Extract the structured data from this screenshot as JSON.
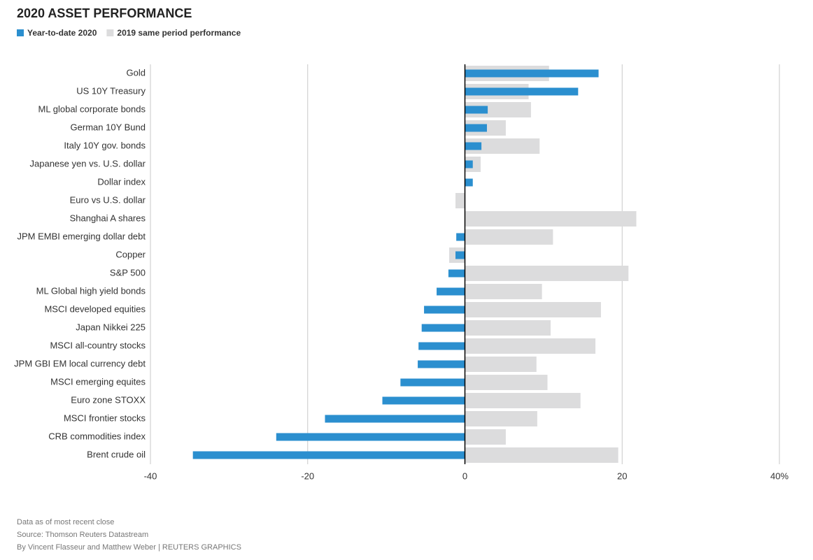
{
  "chart_data": {
    "type": "bar",
    "orientation": "horizontal",
    "title": "2020 ASSET PERFORMANCE",
    "categories": [
      "Gold",
      "US 10Y Treasury",
      "ML global corporate bonds",
      "German 10Y Bund",
      "Italy 10Y gov. bonds",
      "Japanese yen vs. U.S. dollar",
      "Dollar index",
      "Euro vs U.S. dollar",
      "Shanghai A shares",
      "JPM EMBI emerging dollar debt",
      "Copper",
      "S&P 500",
      "ML Global high yield bonds",
      "MSCI developed equities",
      "Japan Nikkei 225",
      "MSCI all-country stocks",
      "JPM GBI EM local currency debt",
      "MSCI emerging equites",
      "Euro zone STOXX",
      "MSCI frontier stocks",
      "CRB commodities index",
      "Brent crude oil"
    ],
    "series": [
      {
        "name": "Year-to-date 2020",
        "color": "#2b8fcf",
        "values": [
          17.0,
          14.4,
          2.9,
          2.8,
          2.1,
          1.0,
          1.0,
          null,
          null,
          -1.1,
          -1.2,
          -2.1,
          -3.6,
          -5.2,
          -5.5,
          -5.9,
          -6.0,
          -8.2,
          -10.5,
          -17.8,
          -24.0,
          -34.6
        ]
      },
      {
        "name": "2019 same period performance",
        "color": "#dcdcdd",
        "values": [
          10.7,
          8.1,
          8.4,
          5.2,
          9.5,
          2.0,
          null,
          -1.2,
          21.8,
          11.2,
          -2.0,
          20.8,
          9.8,
          17.3,
          10.9,
          16.6,
          9.1,
          10.5,
          14.7,
          9.2,
          5.2,
          19.5
        ]
      }
    ],
    "xlim": [
      -40,
      40
    ],
    "xticks": [
      -40,
      -20,
      0,
      20,
      {
        "value": 40,
        "label": "40%"
      }
    ],
    "grid": true,
    "notes": [
      "Data as of most recent close",
      "Source: Thomson Reuters Datastream",
      "By Vincent Flasseur and Matthew Weber | REUTERS GRAPHICS"
    ]
  }
}
